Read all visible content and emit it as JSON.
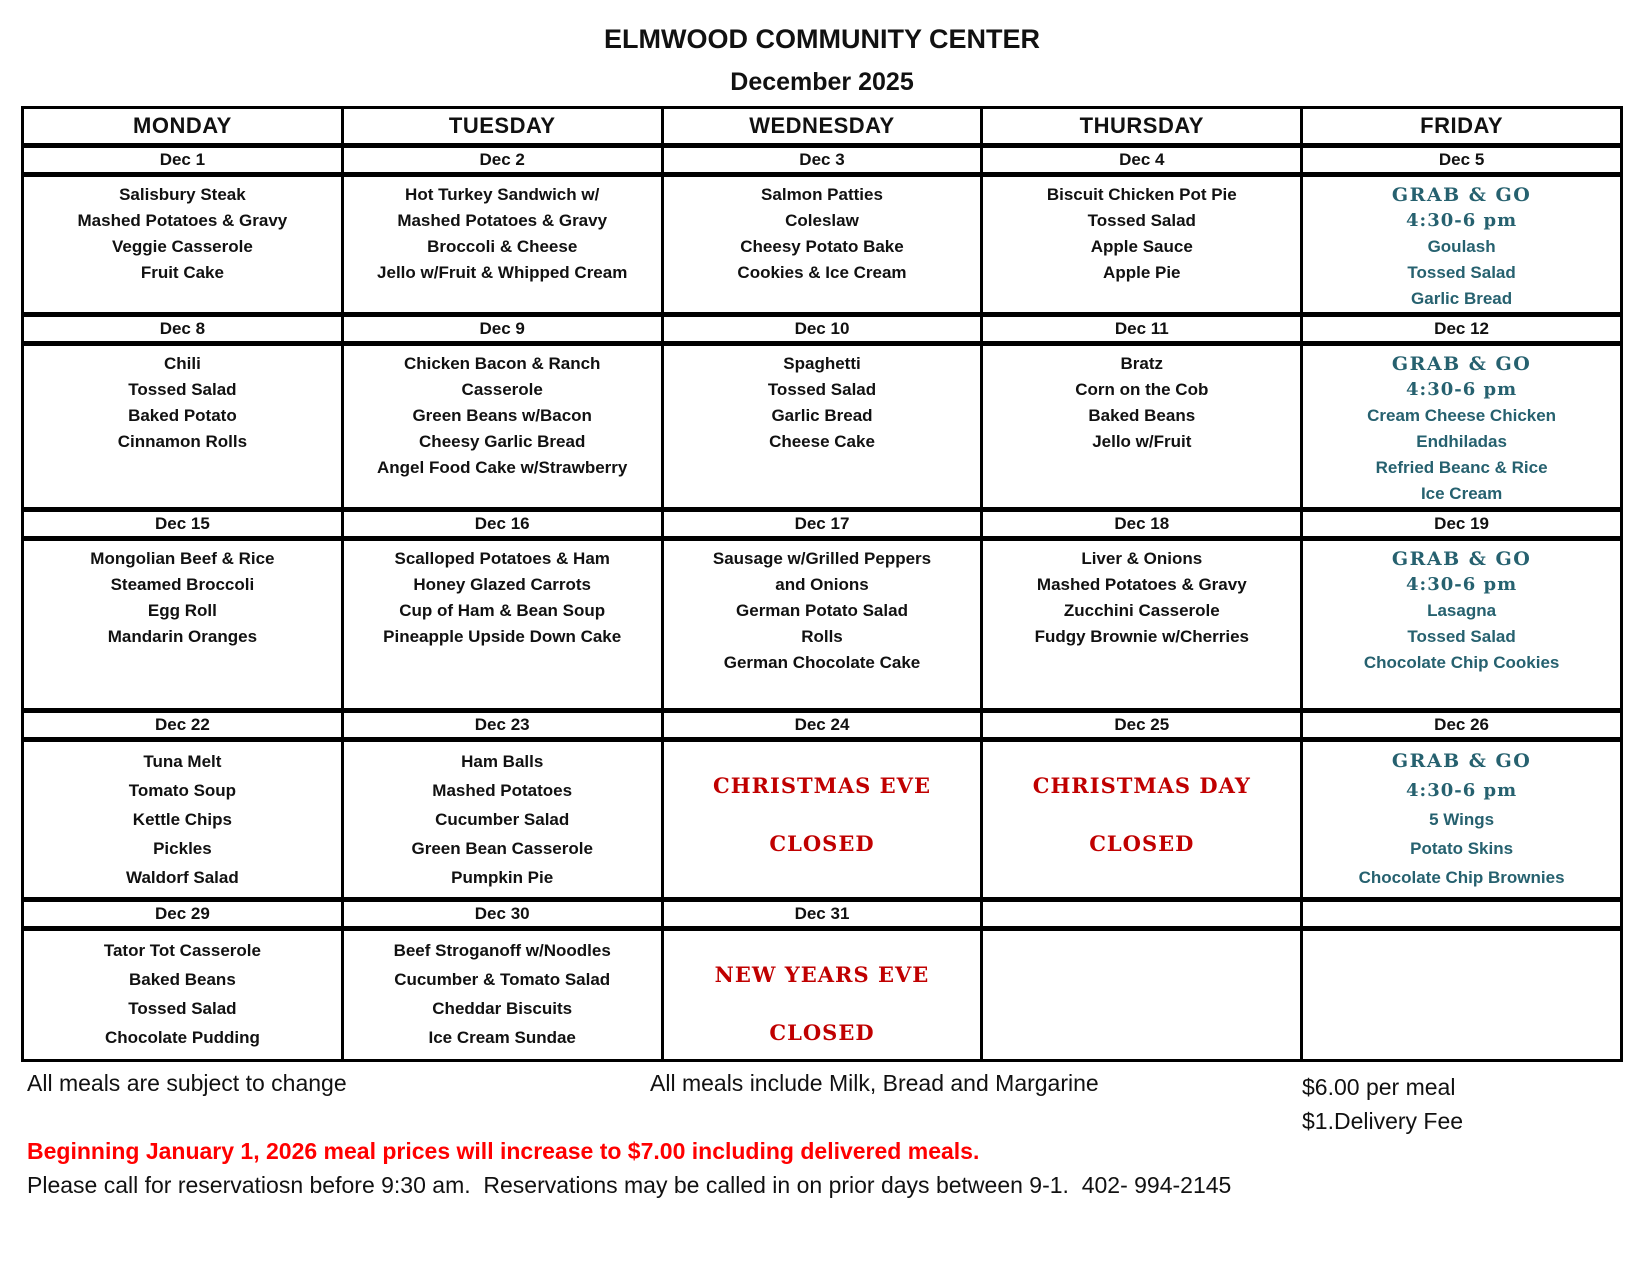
{
  "title": "ELMWOOD COMMUNITY CENTER",
  "subtitle": "December 2025",
  "days": [
    "MONDAY",
    "TUESDAY",
    "WEDNESDAY",
    "THURSDAY",
    "FRIDAY"
  ],
  "weeks": [
    {
      "dates": [
        "Dec 1",
        "Dec 2",
        "Dec 3",
        "Dec 4",
        "Dec 5"
      ],
      "cells": [
        {
          "type": "menu",
          "lines": [
            "Salisbury Steak",
            "Mashed Potatoes & Gravy",
            "Veggie Casserole",
            "Fruit Cake"
          ]
        },
        {
          "type": "menu",
          "lines": [
            "Hot Turkey Sandwich w/",
            "Mashed Potatoes & Gravy",
            "Broccoli & Cheese",
            "Jello w/Fruit & Whipped Cream"
          ]
        },
        {
          "type": "menu",
          "lines": [
            "Salmon Patties",
            "Coleslaw",
            "Cheesy Potato Bake",
            "Cookies & Ice Cream"
          ]
        },
        {
          "type": "menu",
          "lines": [
            "Biscuit Chicken Pot Pie",
            "Tossed Salad",
            "Apple Sauce",
            "Apple Pie"
          ]
        },
        {
          "type": "grabgo",
          "title": "GRAB & GO",
          "time": "4:30-6 pm",
          "lines": [
            "Goulash",
            "Tossed Salad",
            "Garlic Bread"
          ]
        }
      ]
    },
    {
      "dates": [
        "Dec 8",
        "Dec 9",
        "Dec 10",
        "Dec 11",
        "Dec 12"
      ],
      "cells": [
        {
          "type": "menu",
          "lines": [
            "Chili",
            "Tossed Salad",
            "Baked Potato",
            "Cinnamon Rolls"
          ]
        },
        {
          "type": "menu",
          "lines": [
            "Chicken Bacon & Ranch",
            "Casserole",
            "Green Beans w/Bacon",
            "Cheesy Garlic Bread",
            "Angel Food Cake w/Strawberry"
          ]
        },
        {
          "type": "menu",
          "lines": [
            "Spaghetti",
            "Tossed Salad",
            "Garlic Bread",
            "Cheese Cake"
          ]
        },
        {
          "type": "menu",
          "lines": [
            "Bratz",
            "Corn on the Cob",
            "Baked Beans",
            "Jello w/Fruit"
          ]
        },
        {
          "type": "grabgo",
          "title": "GRAB & GO",
          "time": "4:30-6 pm",
          "lines": [
            "Cream Cheese Chicken",
            "Endhiladas",
            "Refried Beanc & Rice",
            "Ice Cream"
          ]
        }
      ]
    },
    {
      "dates": [
        "Dec 15",
        "Dec 16",
        "Dec 17",
        "Dec 18",
        "Dec 19"
      ],
      "cells": [
        {
          "type": "menu",
          "lines": [
            "Mongolian Beef & Rice",
            "Steamed Broccoli",
            "Egg Roll",
            "Mandarin Oranges"
          ]
        },
        {
          "type": "menu",
          "lines": [
            "Scalloped Potatoes & Ham",
            "Honey Glazed Carrots",
            "Cup of Ham & Bean Soup",
            "Pineapple Upside Down Cake"
          ]
        },
        {
          "type": "menu",
          "lines": [
            "Sausage w/Grilled Peppers",
            "and Onions",
            "German Potato Salad",
            "Rolls",
            "German Chocolate Cake"
          ]
        },
        {
          "type": "menu",
          "lines": [
            "Liver & Onions",
            "Mashed Potatoes & Gravy",
            "Zucchini Casserole",
            "Fudgy Brownie w/Cherries"
          ]
        },
        {
          "type": "grabgo",
          "title": "GRAB & GO",
          "time": "4:30-6 pm",
          "lines": [
            "Lasagna",
            "Tossed Salad",
            "Chocolate Chip Cookies"
          ]
        }
      ]
    },
    {
      "dates": [
        "Dec 22",
        "Dec 23",
        "Dec 24",
        "Dec 25",
        "Dec 26"
      ],
      "cells": [
        {
          "type": "menu",
          "lines": [
            "Tuna Melt",
            "Tomato Soup",
            "Kettle Chips",
            "Pickles",
            "Waldorf Salad"
          ]
        },
        {
          "type": "menu",
          "lines": [
            "Ham Balls",
            "Mashed Potatoes",
            "Cucumber Salad",
            "Green Bean Casserole",
            "Pumpkin Pie"
          ]
        },
        {
          "type": "holiday",
          "name": "CHRISTMAS EVE",
          "status": "CLOSED"
        },
        {
          "type": "holiday",
          "name": "CHRISTMAS DAY",
          "status": "CLOSED"
        },
        {
          "type": "grabgo",
          "title": "GRAB & GO",
          "time": "4:30-6 pm",
          "lines": [
            "5 Wings",
            "Potato Skins",
            "Chocolate Chip Brownies"
          ]
        }
      ]
    },
    {
      "dates": [
        "Dec 29",
        "Dec 30",
        "Dec 31",
        "",
        ""
      ],
      "cells": [
        {
          "type": "menu",
          "lines": [
            "Tator Tot Casserole",
            "Baked Beans",
            "Tossed Salad",
            "Chocolate Pudding"
          ]
        },
        {
          "type": "menu",
          "lines": [
            "Beef Stroganoff w/Noodles",
            "Cucumber & Tomato Salad",
            "Cheddar Biscuits",
            "Ice Cream Sundae"
          ]
        },
        {
          "type": "holiday",
          "name": "NEW YEARS EVE",
          "status": "CLOSED"
        },
        {
          "type": "empty"
        },
        {
          "type": "empty"
        }
      ]
    }
  ],
  "footer": {
    "note_left": "All meals are subject to change",
    "note_center": "All meals include Milk, Bread and Margarine",
    "price_line1": "$6.00 per meal",
    "price_line2": "$1.Delivery Fee",
    "notice_red": "Beginning January 1, 2026 meal prices will increase to $7.00 including delivered meals.",
    "reservations": "Please call for reservatiosn before 9:30 am.  Reservations may be called in on prior days between 9-1.  402- 994-2145"
  },
  "colors": {
    "accent_teal": "#26616F",
    "holiday_red": "#C00000",
    "notice_red": "#FF0000"
  }
}
